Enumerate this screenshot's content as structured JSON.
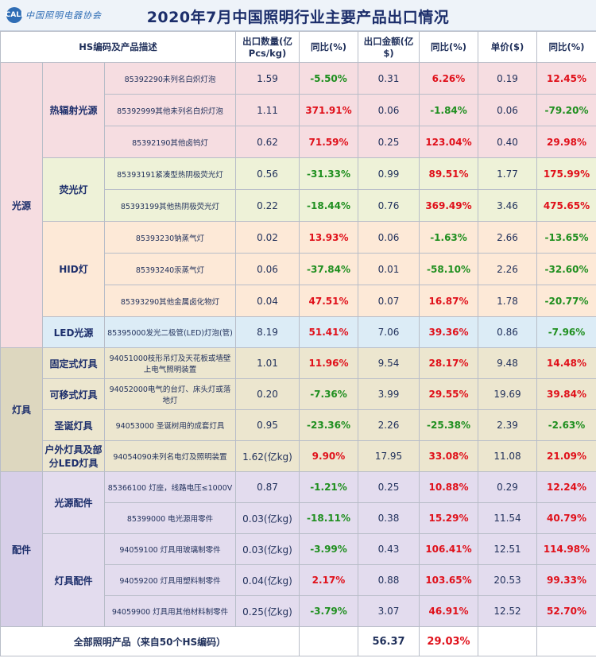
{
  "header": {
    "logo_text": "中国照明电器协会",
    "title": "2020年7月中国照明行业主要产品出口情况"
  },
  "columns": {
    "hs": "HS编码及产品描述",
    "qty": "出口数量(亿Pcs/kg)",
    "yoy1": "同比(%)",
    "amount": "出口金额(亿$)",
    "yoy2": "同比(%)",
    "price": "单价($)",
    "yoy3": "同比(%)"
  },
  "groups": {
    "light_source": "光源",
    "fixtures": "灯具",
    "accessories": "配件"
  },
  "subgroups": {
    "thermal": "热辐射光源",
    "fluorescent": "荧光灯",
    "hid": "HID灯",
    "led": "LED光源",
    "fixed": "固定式灯具",
    "movable": "可移式灯具",
    "christmas": "圣诞灯具",
    "outdoor": "户外灯具及部分LED灯具",
    "ls_parts": "光源配件",
    "fx_parts": "灯具配件"
  },
  "rows": [
    {
      "desc": "85392290未列名白炽灯泡",
      "qty": "1.59",
      "yoy1": "-5.50%",
      "amount": "0.31",
      "yoy2": "6.26%",
      "price": "0.19",
      "yoy3": "12.45%"
    },
    {
      "desc": "85392999其他未列名白炽灯泡",
      "qty": "1.11",
      "yoy1": "371.91%",
      "amount": "0.06",
      "yoy2": "-1.84%",
      "price": "0.06",
      "yoy3": "-79.20%"
    },
    {
      "desc": "85392190其他卤钨灯",
      "qty": "0.62",
      "yoy1": "71.59%",
      "amount": "0.25",
      "yoy2": "123.04%",
      "price": "0.40",
      "yoy3": "29.98%"
    },
    {
      "desc": "85393191紧凑型热阴极荧光灯",
      "qty": "0.56",
      "yoy1": "-31.33%",
      "amount": "0.99",
      "yoy2": "89.51%",
      "price": "1.77",
      "yoy3": "175.99%"
    },
    {
      "desc": "85393199其他热阴极荧光灯",
      "qty": "0.22",
      "yoy1": "-18.44%",
      "amount": "0.76",
      "yoy2": "369.49%",
      "price": "3.46",
      "yoy3": "475.65%"
    },
    {
      "desc": "85393230钠蒸气灯",
      "qty": "0.02",
      "yoy1": "13.93%",
      "amount": "0.06",
      "yoy2": "-1.63%",
      "price": "2.66",
      "yoy3": "-13.65%"
    },
    {
      "desc": "85393240汞蒸气灯",
      "qty": "0.06",
      "yoy1": "-37.84%",
      "amount": "0.01",
      "yoy2": "-58.10%",
      "price": "2.26",
      "yoy3": "-32.60%"
    },
    {
      "desc": "85393290其他金属卤化物灯",
      "qty": "0.04",
      "yoy1": "47.51%",
      "amount": "0.07",
      "yoy2": "16.87%",
      "price": "1.78",
      "yoy3": "-20.77%"
    },
    {
      "desc": "85395000发光二极管(LED)灯泡(管)",
      "qty": "8.19",
      "yoy1": "51.41%",
      "amount": "7.06",
      "yoy2": "39.36%",
      "price": "0.86",
      "yoy3": "-7.96%"
    },
    {
      "desc": "94051000枝形吊灯及天花板或墙壁上电气照明装置",
      "qty": "1.01",
      "yoy1": "11.96%",
      "amount": "9.54",
      "yoy2": "28.17%",
      "price": "9.48",
      "yoy3": "14.48%"
    },
    {
      "desc": "94052000电气的台灯、床头灯或落地灯",
      "qty": "0.20",
      "yoy1": "-7.36%",
      "amount": "3.99",
      "yoy2": "29.55%",
      "price": "19.69",
      "yoy3": "39.84%"
    },
    {
      "desc": "94053000 圣诞树用的成套灯具",
      "qty": "0.95",
      "yoy1": "-23.36%",
      "amount": "2.26",
      "yoy2": "-25.38%",
      "price": "2.39",
      "yoy3": "-2.63%"
    },
    {
      "desc": "94054090未列名电灯及照明装置",
      "qty": "1.62(亿kg)",
      "yoy1": "9.90%",
      "amount": "17.95",
      "yoy2": "33.08%",
      "price": "11.08",
      "yoy3": "21.09%"
    },
    {
      "desc": "85366100 灯座，线路电压≤1000V",
      "qty": "0.87",
      "yoy1": "-1.21%",
      "amount": "0.25",
      "yoy2": "10.88%",
      "price": "0.29",
      "yoy3": "12.24%"
    },
    {
      "desc": "85399000 电光源用零件",
      "qty": "0.03(亿kg)",
      "yoy1": "-18.11%",
      "amount": "0.38",
      "yoy2": "15.29%",
      "price": "11.54",
      "yoy3": "40.79%"
    },
    {
      "desc": "94059100 灯具用玻璃制零件",
      "qty": "0.03(亿kg)",
      "yoy1": "-3.99%",
      "amount": "0.43",
      "yoy2": "106.41%",
      "price": "12.51",
      "yoy3": "114.98%"
    },
    {
      "desc": "94059200 灯具用塑料制零件",
      "qty": "0.04(亿kg)",
      "yoy1": "2.17%",
      "amount": "0.88",
      "yoy2": "103.65%",
      "price": "20.53",
      "yoy3": "99.33%"
    },
    {
      "desc": "94059900 灯具用其他材料制零件",
      "qty": "0.25(亿kg)",
      "yoy1": "-3.79%",
      "amount": "3.07",
      "yoy2": "46.91%",
      "price": "12.52",
      "yoy3": "52.70%"
    }
  ],
  "total": {
    "label": "全部照明产品（来自50个HS编码）",
    "amount": "56.37",
    "yoy": "29.03%"
  }
}
